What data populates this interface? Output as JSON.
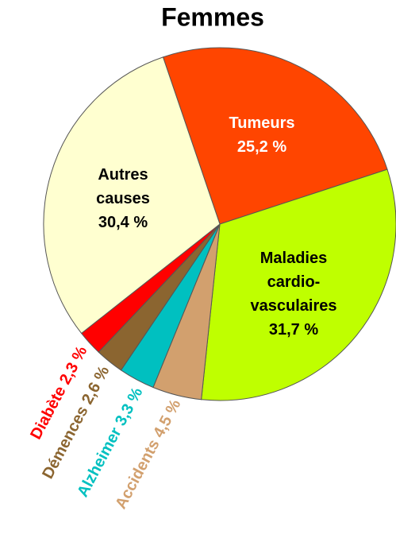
{
  "chart_data": {
    "type": "pie",
    "title": "Femmes",
    "categories": [
      "Tumeurs",
      "Maladies cardio-vasculaires",
      "Accidents",
      "Alzheimer",
      "Démences",
      "Diabète",
      "Autres causes"
    ],
    "values": [
      25.2,
      31.7,
      4.5,
      3.3,
      2.6,
      2.3,
      30.4
    ],
    "value_labels": [
      "25,2 %",
      "31,7 %",
      "4,5 %",
      "3,3 %",
      "2,6 %",
      "2,3 %",
      "30,4 %"
    ],
    "colors": [
      "#ff4500",
      "#bfff00",
      "#d2a06e",
      "#00c0c0",
      "#8b6530",
      "#ff0000",
      "#ffffd0"
    ]
  }
}
